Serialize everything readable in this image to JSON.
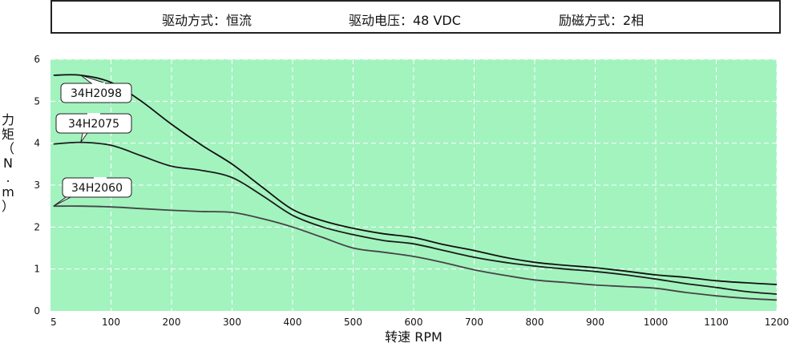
{
  "header": {
    "drive_mode": "驱动方式：恒流",
    "drive_voltage": "驱动电压：48 VDC",
    "excitation": "励磁方式：2相"
  },
  "chart_data": {
    "type": "line",
    "xlabel": "转速 RPM",
    "ylabel": "力矩（N.m）",
    "xlim": [
      0,
      1200
    ],
    "ylim": [
      0,
      6
    ],
    "xticks": [
      5,
      100,
      200,
      300,
      400,
      500,
      600,
      700,
      800,
      900,
      1000,
      1100,
      1200
    ],
    "yticks": [
      0,
      1,
      2,
      3,
      4,
      5,
      6
    ],
    "grid": true,
    "background": "#a3f3bf",
    "series": [
      {
        "name": "34H2098",
        "color": "#111111",
        "x": [
          5,
          50,
          100,
          150,
          200,
          250,
          300,
          350,
          400,
          450,
          500,
          550,
          600,
          650,
          700,
          750,
          800,
          850,
          900,
          950,
          1000,
          1050,
          1100,
          1150,
          1200
        ],
        "y": [
          5.62,
          5.62,
          5.45,
          5.0,
          4.45,
          3.95,
          3.5,
          2.95,
          2.42,
          2.15,
          1.97,
          1.84,
          1.75,
          1.58,
          1.44,
          1.28,
          1.16,
          1.09,
          1.03,
          0.95,
          0.86,
          0.8,
          0.72,
          0.67,
          0.63
        ]
      },
      {
        "name": "34H2075",
        "color": "#1b1b1b",
        "x": [
          5,
          50,
          100,
          150,
          200,
          250,
          300,
          350,
          400,
          450,
          500,
          550,
          600,
          650,
          700,
          750,
          800,
          850,
          900,
          950,
          1000,
          1050,
          1100,
          1150,
          1200
        ],
        "y": [
          3.98,
          4.02,
          3.95,
          3.7,
          3.45,
          3.35,
          3.18,
          2.75,
          2.28,
          2.0,
          1.82,
          1.68,
          1.6,
          1.44,
          1.28,
          1.16,
          1.07,
          1.0,
          0.94,
          0.86,
          0.76,
          0.65,
          0.56,
          0.46,
          0.4
        ]
      },
      {
        "name": "34H2060",
        "color": "#444444",
        "x": [
          5,
          50,
          100,
          150,
          200,
          250,
          300,
          350,
          400,
          450,
          500,
          550,
          600,
          650,
          700,
          750,
          800,
          850,
          900,
          950,
          1000,
          1050,
          1100,
          1150,
          1200
        ],
        "y": [
          2.5,
          2.5,
          2.48,
          2.44,
          2.4,
          2.37,
          2.35,
          2.2,
          2.0,
          1.75,
          1.5,
          1.4,
          1.3,
          1.15,
          0.98,
          0.85,
          0.74,
          0.68,
          0.62,
          0.58,
          0.54,
          0.44,
          0.36,
          0.3,
          0.26
        ]
      }
    ],
    "annotations": [
      {
        "text": "34H2098",
        "series": 0
      },
      {
        "text": "34H2075",
        "series": 1
      },
      {
        "text": "34H2060",
        "series": 2
      }
    ]
  }
}
